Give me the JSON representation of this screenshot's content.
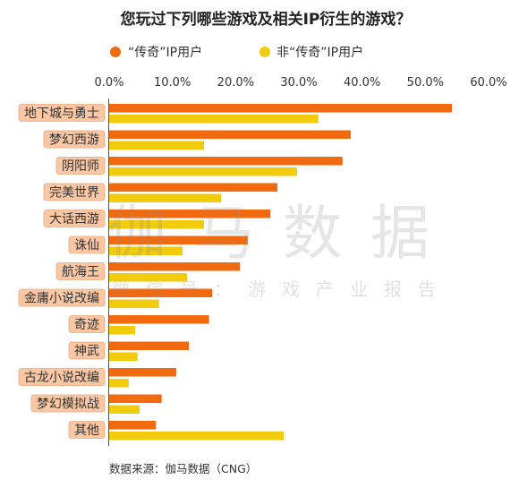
{
  "chart_data": {
    "type": "bar",
    "orientation": "horizontal",
    "title": "您玩过下列哪些游戏及相关IP衍生的游戏？",
    "categories": [
      "地下城与勇士",
      "梦幻西游",
      "阴阳师",
      "完美世界",
      "大话西游",
      "诛仙",
      "航海王",
      "金庸小说改编",
      "奇迹",
      "神武",
      "古龙小说改编",
      "梦幻模拟战",
      "其他"
    ],
    "series": [
      {
        "name": "“传奇”IP用户",
        "color": "#f26a0f",
        "values": [
          54.2,
          38.2,
          36.9,
          26.6,
          25.5,
          21.9,
          20.7,
          16.3,
          15.8,
          12.6,
          10.6,
          8.3,
          7.4
        ]
      },
      {
        "name": "非“传奇”IP用户",
        "color": "#f2cb0d",
        "values": [
          33.1,
          15.0,
          29.7,
          17.7,
          15.0,
          11.6,
          12.3,
          7.9,
          4.1,
          4.5,
          3.1,
          4.8,
          27.6
        ]
      }
    ],
    "xlim": [
      0,
      60
    ],
    "x_ticks": [
      "0.0%",
      "10.0%",
      "20.0%",
      "30.0%",
      "40.0%",
      "50.0%",
      "60.0%"
    ],
    "category_label_color": "#f9c7a4",
    "category_label_border": "#eea67a",
    "grid": false,
    "legend": "top",
    "source": "数据来源：伽马数据（CNG）"
  },
  "watermark": {
    "logo": "伽马数据",
    "subtitle": "微信号：游戏产业报告"
  }
}
